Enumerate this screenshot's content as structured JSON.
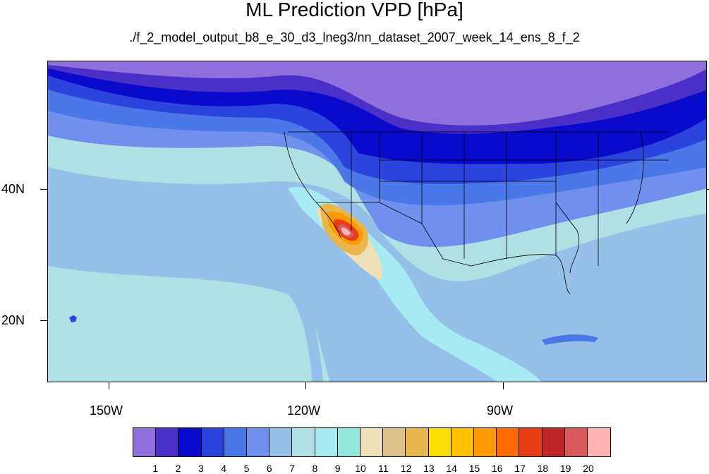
{
  "title": "ML Prediction VPD [hPa]",
  "subtitle": "./f_2_model_output_b8_e_30_d3_lneg3/nn_dataset_2007_week_14_ens_8_f_2",
  "axes": {
    "lat_labels": [
      "40N",
      "20N"
    ],
    "lon_labels": [
      "150W",
      "120W",
      "90W"
    ]
  },
  "colorbar": {
    "colors": [
      "#8e6fdc",
      "#4a2fc8",
      "#0a0acc",
      "#2a44dd",
      "#4a78e8",
      "#6f90ec",
      "#94c0ea",
      "#aee0e4",
      "#a7ebf2",
      "#92e6da",
      "#f0e0b8",
      "#dfc08c",
      "#e8b84e",
      "#fae000",
      "#ffc000",
      "#ff9a00",
      "#ff6a00",
      "#e83c16",
      "#bf2626",
      "#d85a5a",
      "#ffb3b3"
    ],
    "labels": [
      "1",
      "2",
      "3",
      "4",
      "5",
      "6",
      "7",
      "8",
      "9",
      "10",
      "11",
      "12",
      "13",
      "14",
      "15",
      "16",
      "17",
      "18",
      "19",
      "20"
    ]
  }
}
